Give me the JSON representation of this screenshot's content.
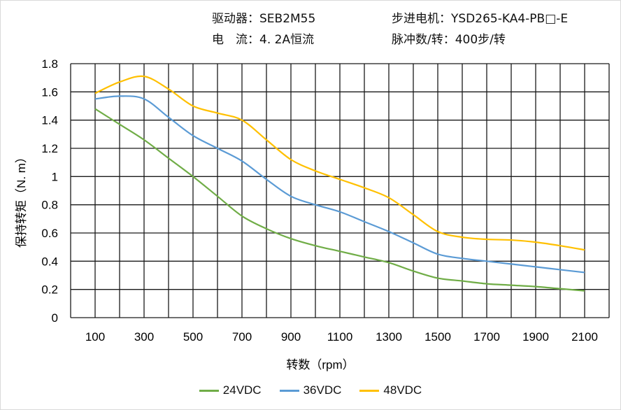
{
  "header": {
    "driver": "驱动器：SEB2M55",
    "current": "电　流：4. 2A恒流",
    "motor": "步进电机：YSD265-KA4-PB□-E",
    "pulses": "脉冲数/转：400步/转"
  },
  "chart_data": {
    "type": "line",
    "title": "",
    "xlabel": "转数（rpm）",
    "ylabel": "保持转矩（N. m）",
    "xlim": [
      0,
      2200
    ],
    "ylim": [
      0,
      1.8
    ],
    "grid": true,
    "legend_position": "bottom",
    "x_ticks": [
      "100",
      "300",
      "500",
      "700",
      "900",
      "1100",
      "1300",
      "1500",
      "1700",
      "1900",
      "2100"
    ],
    "y_ticks": [
      "0",
      "0.2",
      "0.4",
      "0.6",
      "0.8",
      "1",
      "1.2",
      "1.4",
      "1.6",
      "1.8"
    ],
    "x": [
      100,
      200,
      300,
      400,
      500,
      600,
      700,
      800,
      900,
      1000,
      1100,
      1200,
      1300,
      1400,
      1500,
      1600,
      1700,
      1800,
      1900,
      2000,
      2100
    ],
    "series": [
      {
        "name": "24VDC",
        "color": "#70ad47",
        "values": [
          1.48,
          1.37,
          1.26,
          1.13,
          1.0,
          0.86,
          0.72,
          0.63,
          0.56,
          0.51,
          0.47,
          0.43,
          0.39,
          0.33,
          0.28,
          0.26,
          0.24,
          0.23,
          0.22,
          0.205,
          0.19
        ]
      },
      {
        "name": "36VDC",
        "color": "#5b9bd5",
        "values": [
          1.55,
          1.57,
          1.55,
          1.42,
          1.29,
          1.2,
          1.11,
          0.98,
          0.86,
          0.8,
          0.75,
          0.68,
          0.61,
          0.53,
          0.45,
          0.42,
          0.4,
          0.38,
          0.36,
          0.34,
          0.32
        ]
      },
      {
        "name": "48VDC",
        "color": "#ffc000",
        "values": [
          1.59,
          1.67,
          1.71,
          1.62,
          1.5,
          1.45,
          1.4,
          1.26,
          1.12,
          1.04,
          0.98,
          0.92,
          0.85,
          0.73,
          0.61,
          0.57,
          0.555,
          0.55,
          0.535,
          0.51,
          0.48
        ]
      }
    ]
  }
}
